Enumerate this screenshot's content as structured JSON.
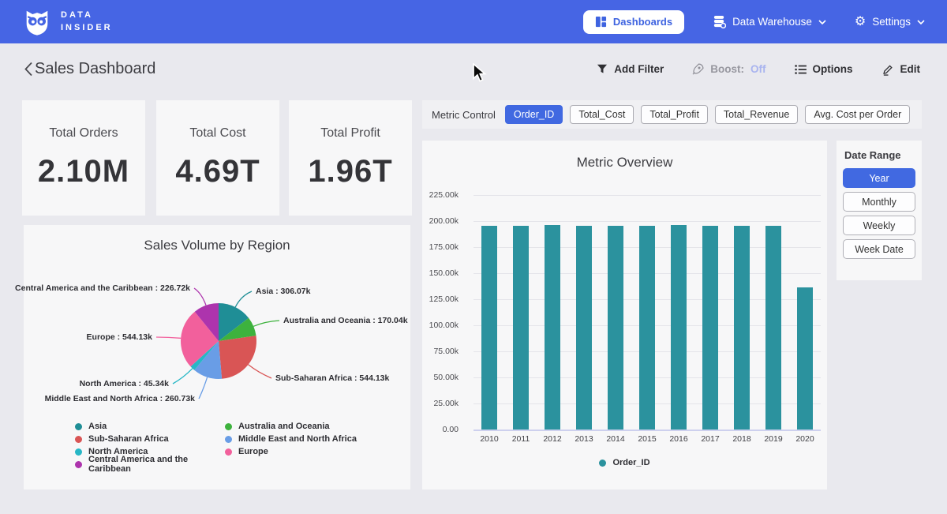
{
  "navbar": {
    "logo_line1": "DATA",
    "logo_line2": "INSIDER",
    "dashboards_label": "Dashboards",
    "data_warehouse_label": "Data Warehouse",
    "settings_label": "Settings"
  },
  "header": {
    "title": "Sales Dashboard",
    "add_filter_label": "Add Filter",
    "boost_label": "Boost:",
    "boost_state": "Off",
    "options_label": "Options",
    "edit_label": "Edit"
  },
  "kpis": [
    {
      "label": "Total Orders",
      "value": "2.10M"
    },
    {
      "label": "Total Cost",
      "value": "4.69T"
    },
    {
      "label": "Total Profit",
      "value": "1.96T"
    }
  ],
  "metric_control": {
    "label": "Metric Control",
    "options": [
      "Order_ID",
      "Total_Cost",
      "Total_Profit",
      "Total_Revenue",
      "Avg. Cost per Order"
    ],
    "selected": "Order_ID"
  },
  "date_range": {
    "label": "Date Range",
    "options": [
      "Year",
      "Monthly",
      "Weekly",
      "Week Date"
    ],
    "selected": "Year"
  },
  "colors": {
    "navbar": "#4665e4",
    "accent": "#4169e1",
    "bar_series": "#2b929e",
    "boost_off_text": "#a9b4ef"
  },
  "chart_data": [
    {
      "type": "pie",
      "title": "Sales Volume by Region",
      "unit": "k",
      "slices": [
        {
          "label": "Asia",
          "value": 306.07,
          "callout": "Asia : 306.07k",
          "color": "#1f8e96"
        },
        {
          "label": "Australia and Oceania",
          "value": 170.04,
          "callout": "Australia and Oceania : 170.04k",
          "color": "#3db23d"
        },
        {
          "label": "Sub-Saharan Africa",
          "value": 544.13,
          "callout": "Sub-Saharan Africa : 544.13k",
          "color": "#d95555"
        },
        {
          "label": "Middle East and North Africa",
          "value": 260.73,
          "callout": "Middle East and North Africa : 260.73k",
          "color": "#699de6"
        },
        {
          "label": "North America",
          "value": 45.34,
          "callout": "North America : 45.34k",
          "color": "#27b7c6"
        },
        {
          "label": "Europe",
          "value": 544.13,
          "callout": "Europe : 544.13k",
          "color": "#f2609c"
        },
        {
          "label": "Central America and the Caribbean",
          "value": 226.72,
          "callout": "Central America and the Caribbean : 226.72k",
          "color": "#ad34ad"
        }
      ],
      "legend_columns": [
        [
          "Asia",
          "Sub-Saharan Africa",
          "North America",
          "Central America and the Caribbean"
        ],
        [
          "Australia and Oceania",
          "Middle East and North Africa",
          "Europe"
        ]
      ],
      "legend_position": "bottom"
    },
    {
      "type": "bar",
      "title": "Metric Overview",
      "categories": [
        "2010",
        "2011",
        "2012",
        "2013",
        "2014",
        "2015",
        "2016",
        "2017",
        "2018",
        "2019",
        "2020"
      ],
      "series": [
        {
          "name": "Order_ID",
          "color": "#2b929e",
          "values": [
            195600,
            195400,
            196500,
            195400,
            195500,
            195500,
            196600,
            195600,
            195400,
            195800,
            136600
          ]
        }
      ],
      "ylim": [
        0,
        225000
      ],
      "y_ticks": [
        "225.00k",
        "200.00k",
        "175.00k",
        "150.00k",
        "125.00k",
        "100.00k",
        "75.00k",
        "50.00k",
        "25.00k",
        "0.00"
      ],
      "grid": true,
      "legend_position": "bottom"
    }
  ]
}
